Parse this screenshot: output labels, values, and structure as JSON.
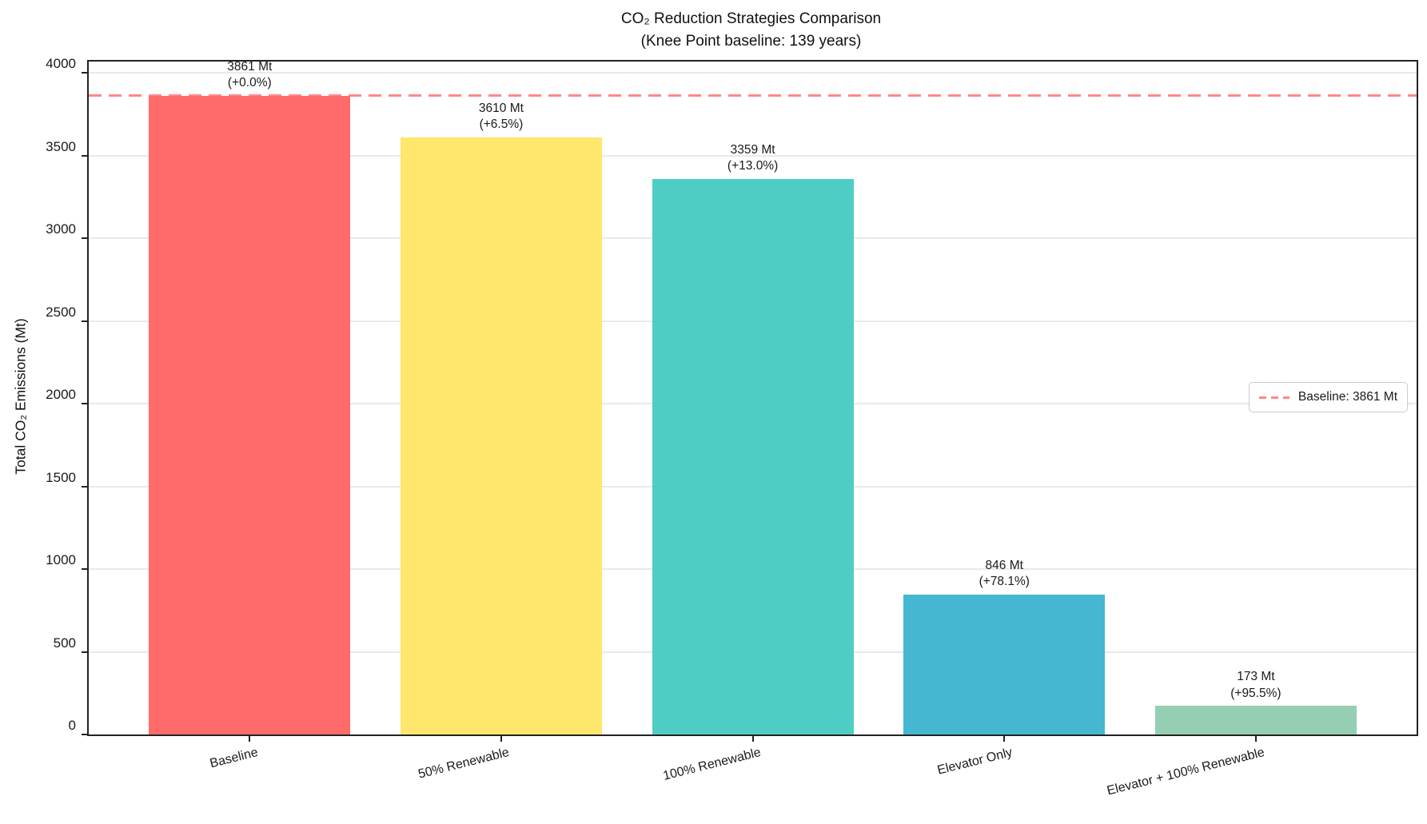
{
  "title": {
    "line1": "CO₂ Reduction Strategies Comparison",
    "line2": "(Knee Point baseline: 139 years)"
  },
  "y_axis": {
    "label": "Total CO₂ Emissions (Mt)",
    "ticks": [
      0,
      500,
      1000,
      1500,
      2000,
      2500,
      3000,
      3500,
      4000
    ]
  },
  "legend": {
    "baseline_label": "Baseline: 3861 Mt"
  },
  "chart_data": {
    "type": "bar",
    "title": "CO₂ Reduction Strategies Comparison (Knee Point baseline: 139 years)",
    "xlabel": "",
    "ylabel": "Total CO₂ Emissions (Mt)",
    "ylim": [
      0,
      4068
    ],
    "grid": "horizontal",
    "legend_position": "center-right",
    "categories": [
      "Baseline",
      "50% Renewable",
      "100% Renewable",
      "Elevator Only",
      "Elevator + 100% Renewable"
    ],
    "values": [
      3861,
      3610,
      3359,
      846,
      173
    ],
    "bar_colors": [
      "#FF6B6B",
      "#FFE66D",
      "#4ECDC4",
      "#45B7D1",
      "#96CEB4"
    ],
    "bar_labels": [
      {
        "value": "3861 Mt",
        "pct": "(+0.0%)"
      },
      {
        "value": "3610 Mt",
        "pct": "(+6.5%)"
      },
      {
        "value": "3359 Mt",
        "pct": "(+13.0%)"
      },
      {
        "value": "846 Mt",
        "pct": "(+78.1%)"
      },
      {
        "value": "173 Mt",
        "pct": "(+95.5%)"
      }
    ],
    "baseline": {
      "value": 3861,
      "label": "Baseline: 3861 Mt",
      "color": "#FF6B6B",
      "style": "dashed"
    }
  }
}
